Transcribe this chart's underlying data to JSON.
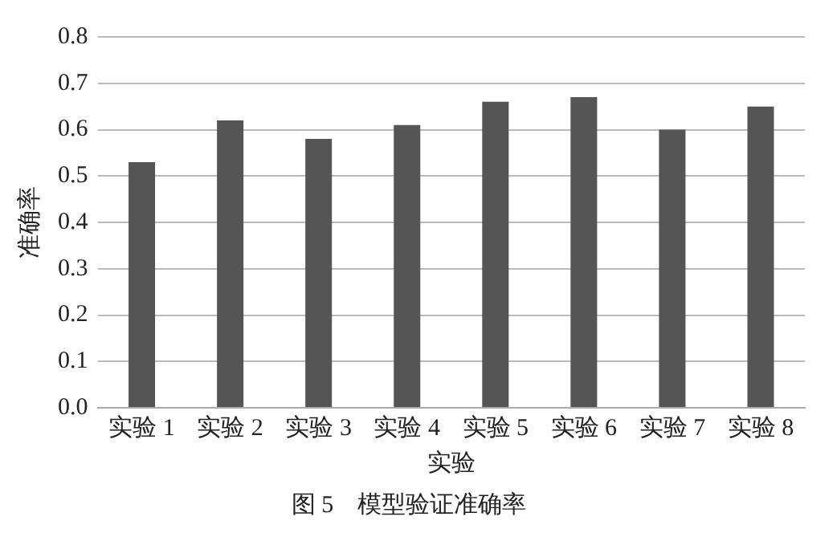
{
  "chart_data": {
    "type": "bar",
    "title": "图 5　模型验证准确率",
    "xlabel": "实验",
    "ylabel": "准确率",
    "categories": [
      "实验 1",
      "实验 2",
      "实验 3",
      "实验 4",
      "实验 5",
      "实验 6",
      "实验 7",
      "实验 8"
    ],
    "values": [
      0.53,
      0.62,
      0.58,
      0.61,
      0.66,
      0.67,
      0.6,
      0.65
    ],
    "color": "#555555",
    "ylim": [
      0,
      0.8
    ],
    "yticks": [
      {
        "value": 0,
        "label": "0.0"
      },
      0.1,
      0.2,
      0.3,
      0.4,
      0.5,
      0.6,
      0.7,
      0.8
    ],
    "grid": "y",
    "legend": false
  }
}
